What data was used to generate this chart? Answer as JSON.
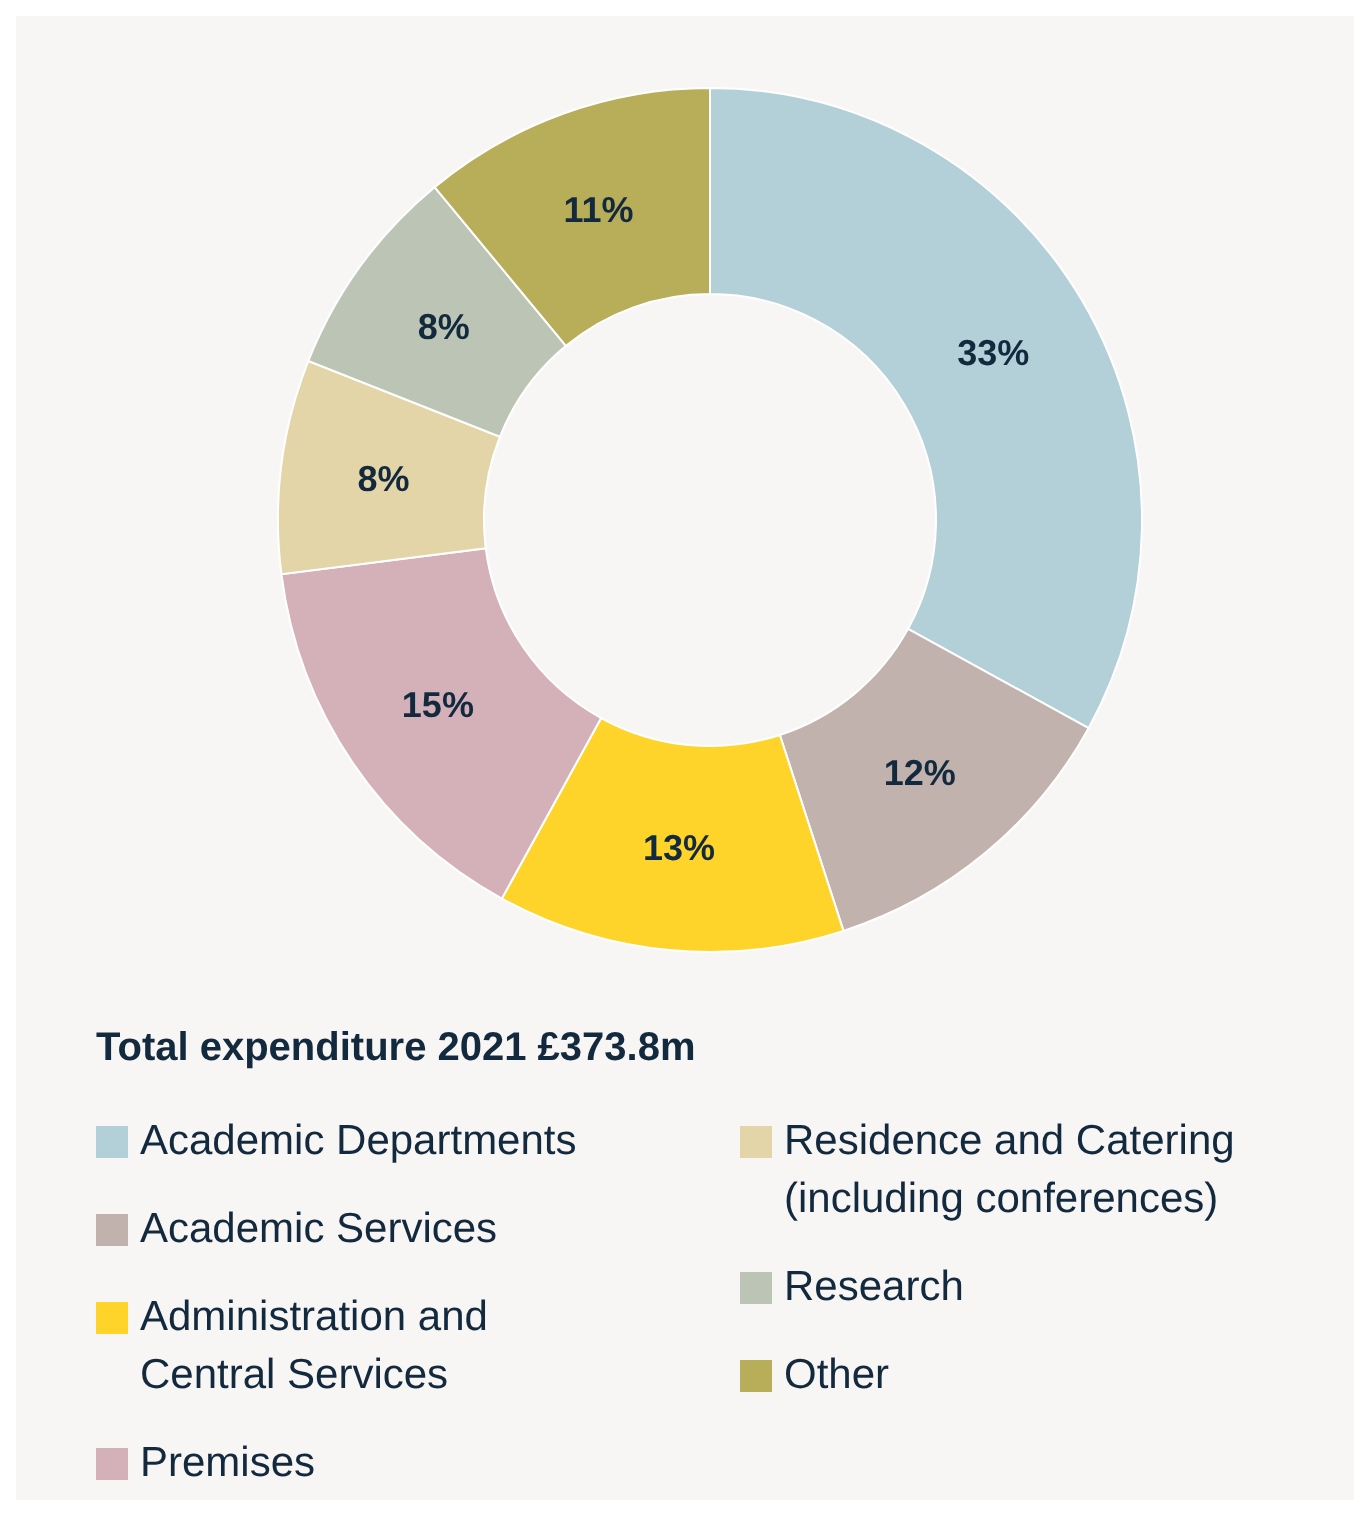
{
  "chart_data": {
    "type": "donut",
    "title": "Total expenditure 2021 £373.8m",
    "categories": [
      "Academic Departments",
      "Academic Services",
      "Administration and Central Services",
      "Premises",
      "Residence and Catering (including conferences)",
      "Research",
      "Other"
    ],
    "values": [
      33,
      12,
      13,
      15,
      8,
      8,
      11
    ],
    "colors": [
      "#b3cfd8",
      "#c1b2ad",
      "#ffd42a",
      "#d4b0b8",
      "#e3d5a8",
      "#bcc5b5",
      "#b8ad58"
    ],
    "value_labels": [
      "33%",
      "12%",
      "13%",
      "15%",
      "8%",
      "8%",
      "11%"
    ],
    "legend": "bottom"
  }
}
